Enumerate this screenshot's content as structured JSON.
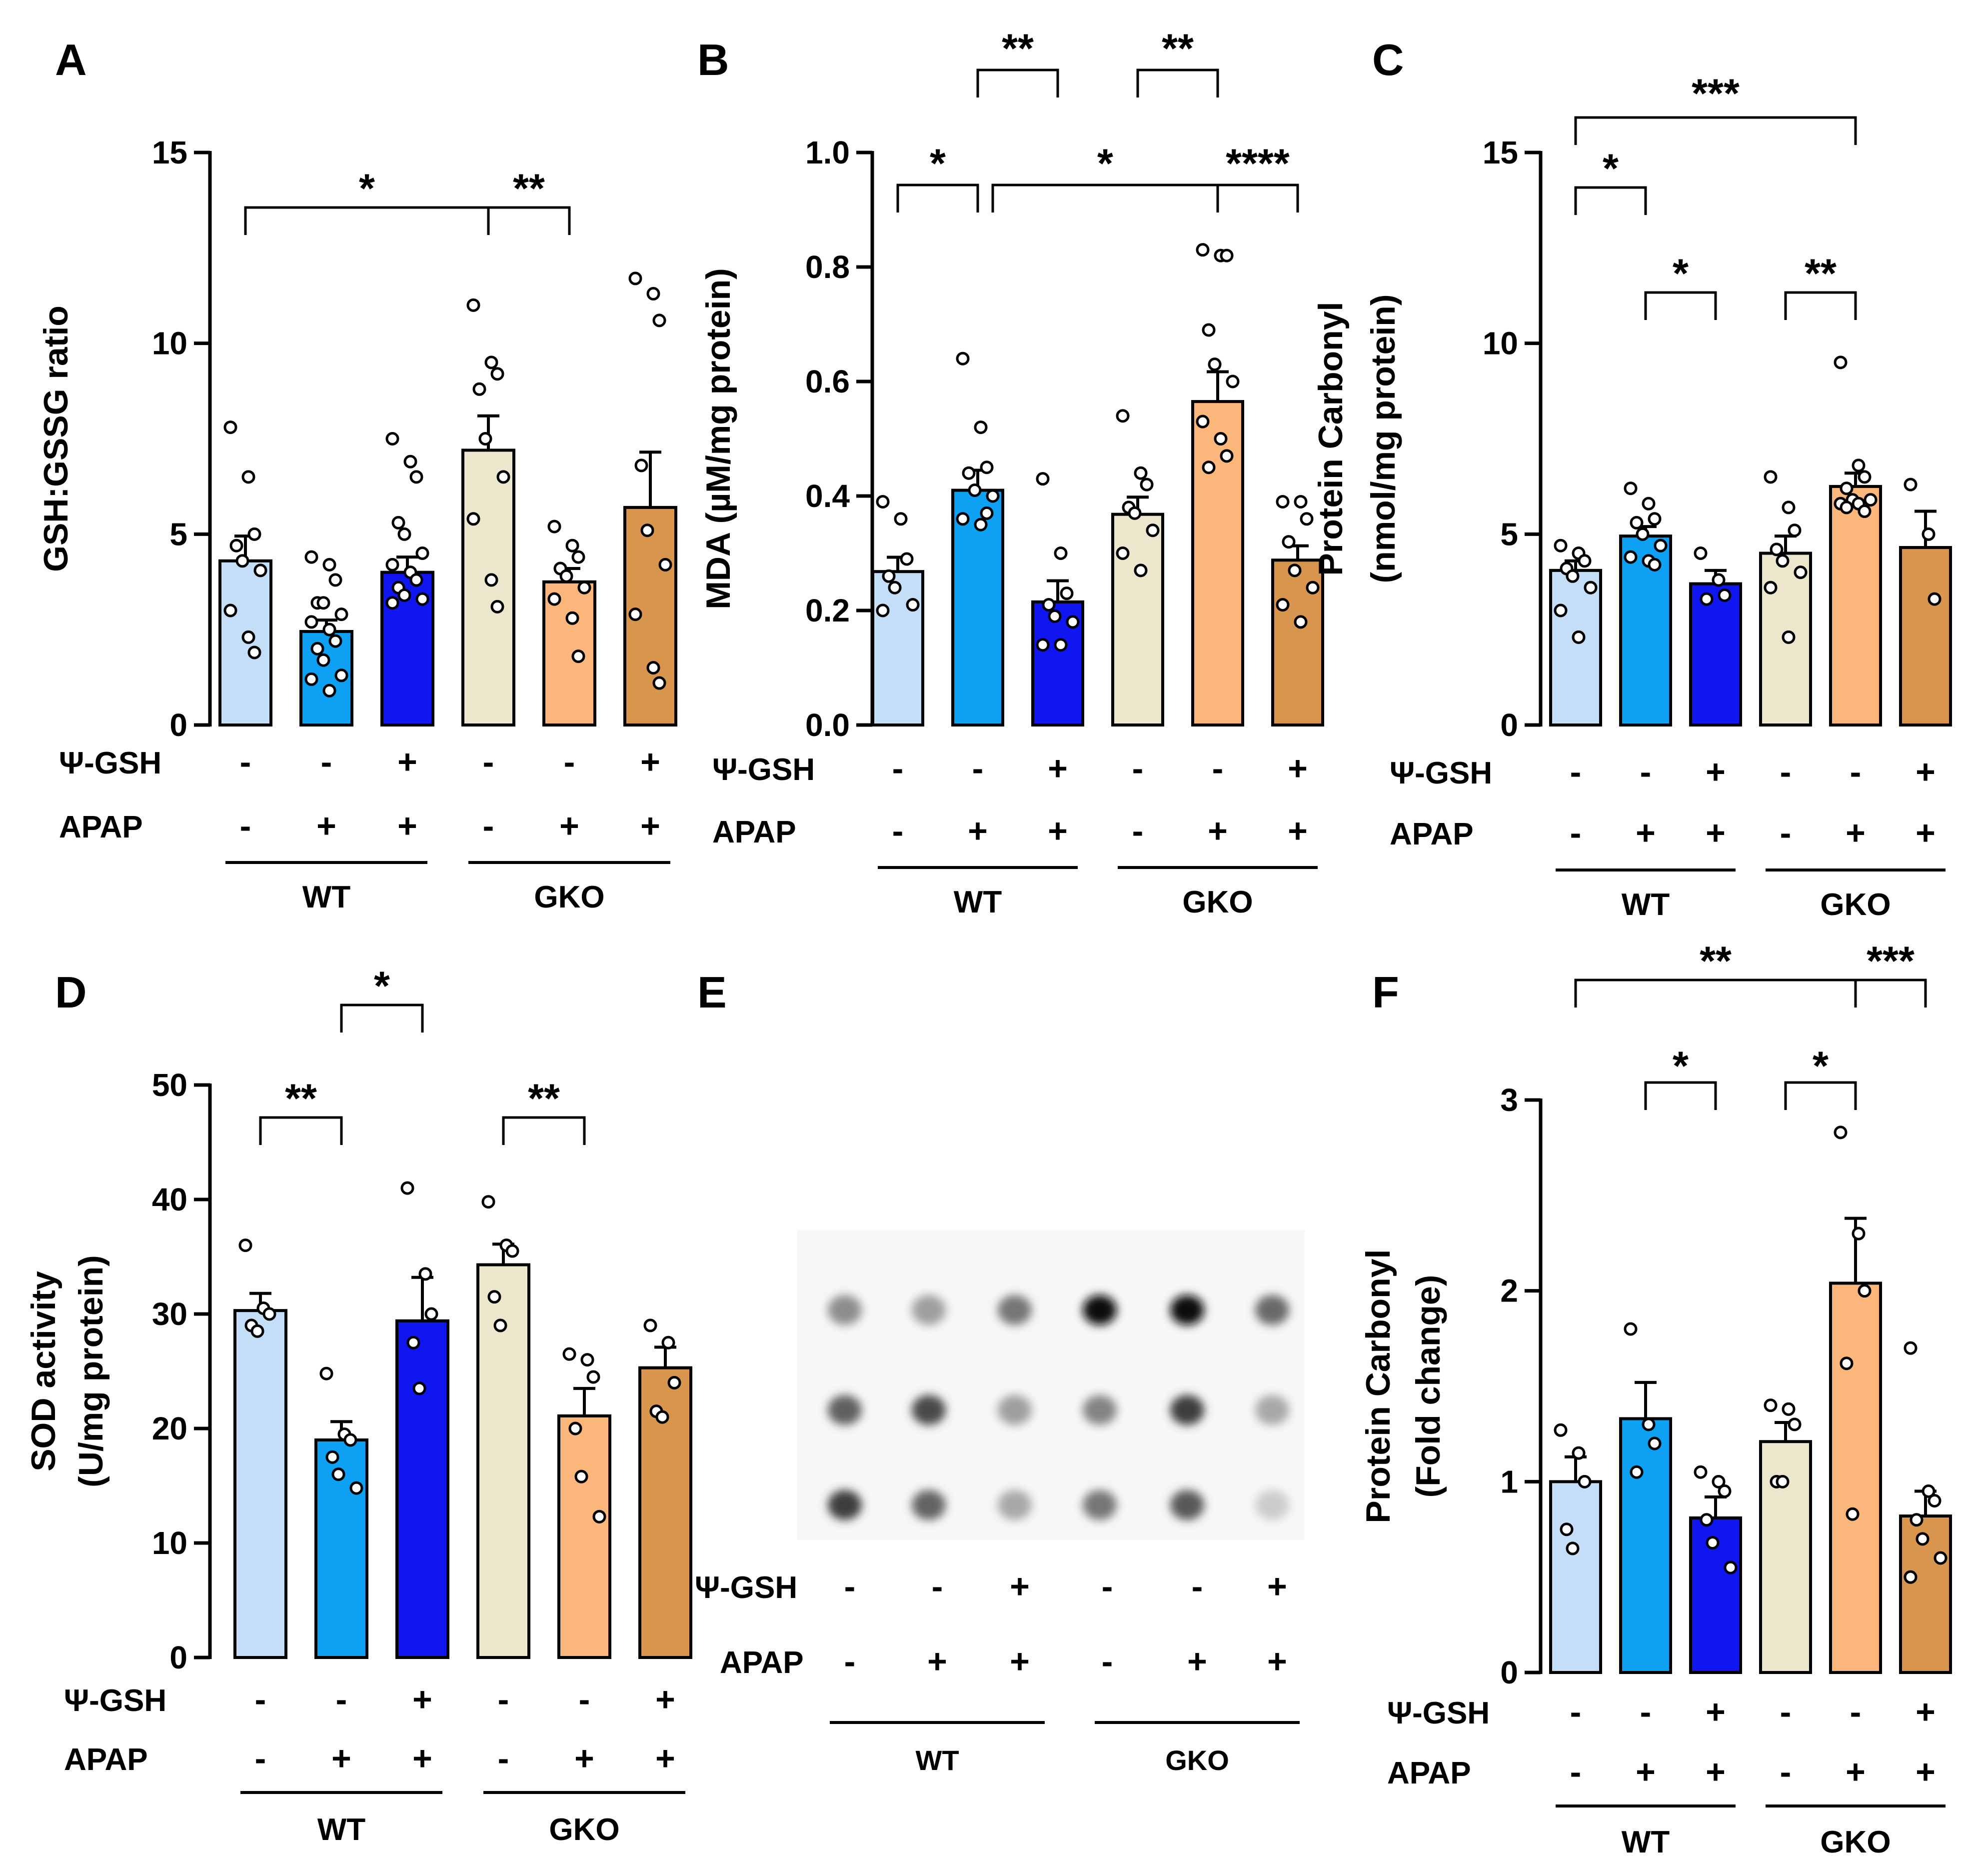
{
  "colors": {
    "wt_ctrl": "#c3def6",
    "wt_apap": "#0ea0f2",
    "wt_gsh": "#0f16f0",
    "gko_ctrl": "#ece7cc",
    "gko_apap": "#fbb67c",
    "gko_gsh": "#d7954d",
    "stroke": "#000000"
  },
  "treatment_labels": {
    "gsh": "Ψ-GSH",
    "apap": "APAP"
  },
  "group_labels": {
    "wt": "WT",
    "gko": "GKO"
  },
  "gsh_signs": [
    "-",
    "-",
    "+",
    "-",
    "-",
    "+"
  ],
  "apap_signs": [
    "-",
    "+",
    "+",
    "-",
    "+",
    "+"
  ],
  "chart_data": [
    {
      "panel": "A",
      "type": "bar",
      "title": "",
      "ylabel": "GSH:GSSG ratio",
      "ylim": [
        0,
        15
      ],
      "yticks": [
        0,
        5,
        10,
        15
      ],
      "tick_labels": [
        "0",
        "5",
        "10",
        "15"
      ],
      "categories": [
        "WT -/-",
        "WT APAP",
        "WT Ψ-GSH+APAP",
        "GKO -/-",
        "GKO APAP",
        "GKO Ψ-GSH+APAP"
      ],
      "values": [
        4.3,
        2.45,
        4.0,
        7.2,
        3.75,
        5.7
      ],
      "errors": [
        0.65,
        0.3,
        0.4,
        0.9,
        0.35,
        1.45
      ],
      "points": [
        [
          7.8,
          6.5,
          5.0,
          4.7,
          4.3,
          4.05,
          3.0,
          2.3,
          1.9
        ],
        [
          4.4,
          4.2,
          3.8,
          3.2,
          3.2,
          2.9,
          2.7,
          2.5,
          2.2,
          2.0,
          1.7,
          1.3,
          1.2,
          0.9
        ],
        [
          7.5,
          6.9,
          6.5,
          5.3,
          5.0,
          4.5,
          4.2,
          4.0,
          3.8,
          3.6,
          3.4,
          3.3,
          3.2
        ],
        [
          11.0,
          9.5,
          9.2,
          8.8,
          7.5,
          6.5,
          5.4,
          3.8,
          3.1
        ],
        [
          5.2,
          4.7,
          4.4,
          4.1,
          3.9,
          3.6,
          3.3,
          2.8,
          1.8
        ],
        [
          11.7,
          11.3,
          10.6,
          6.8,
          5.1,
          4.2,
          2.9,
          1.5,
          1.1
        ]
      ],
      "significance": [
        {
          "from": 0,
          "to": 3,
          "label": "*"
        },
        {
          "from": 3,
          "to": 4,
          "label": "**"
        }
      ]
    },
    {
      "panel": "B",
      "type": "bar",
      "title": "",
      "ylabel": "MDA (µM/mg protein)",
      "ylim": [
        0,
        1.0
      ],
      "yticks": [
        0,
        0.2,
        0.4,
        0.6,
        0.8,
        1.0
      ],
      "tick_labels": [
        "0.0",
        "0.2",
        "0.4",
        "0.6",
        "0.8",
        "1.0"
      ],
      "categories": [
        "WT -/-",
        "WT APAP",
        "WT Ψ-GSH+APAP",
        "GKO -/-",
        "GKO APAP",
        "GKO Ψ-GSH+APAP"
      ],
      "values": [
        0.268,
        0.41,
        0.215,
        0.368,
        0.565,
        0.288
      ],
      "errors": [
        0.025,
        0.035,
        0.037,
        0.03,
        0.052,
        0.025
      ],
      "points": [
        [
          0.39,
          0.36,
          0.29,
          0.26,
          0.24,
          0.21,
          0.2
        ],
        [
          0.64,
          0.52,
          0.45,
          0.44,
          0.41,
          0.4,
          0.36,
          0.35,
          0.37
        ],
        [
          0.43,
          0.3,
          0.23,
          0.21,
          0.19,
          0.18,
          0.14,
          0.14
        ],
        [
          0.54,
          0.44,
          0.42,
          0.38,
          0.37,
          0.34,
          0.3,
          0.27
        ],
        [
          0.83,
          0.82,
          0.82,
          0.69,
          0.63,
          0.6,
          0.53,
          0.5,
          0.47,
          0.45
        ],
        [
          0.39,
          0.39,
          0.36,
          0.32,
          0.27,
          0.24,
          0.21,
          0.18
        ]
      ],
      "significance": [
        {
          "from": 0,
          "to": 1,
          "label": "*"
        },
        {
          "from": 1,
          "to": 2,
          "label": "**"
        },
        {
          "from": 1,
          "to": 4,
          "label": "*"
        },
        {
          "from": 3,
          "to": 4,
          "label": "**"
        },
        {
          "from": 4,
          "to": 5,
          "label": "****"
        }
      ]
    },
    {
      "panel": "C",
      "type": "bar",
      "title": "",
      "ylabel": "Protein Carbonyl",
      "ylabel2": "(nmol/mg protein)",
      "ylim": [
        0,
        15
      ],
      "yticks": [
        0,
        5,
        10,
        15
      ],
      "tick_labels": [
        "0",
        "5",
        "10",
        "15"
      ],
      "categories": [
        "WT -/-",
        "WT APAP",
        "WT Ψ-GSH+APAP",
        "GKO -/-",
        "GKO APAP",
        "GKO Ψ-GSH+APAP"
      ],
      "values": [
        4.05,
        4.95,
        3.7,
        4.5,
        6.25,
        4.65
      ],
      "errors": [
        0.25,
        0.25,
        0.35,
        0.45,
        0.35,
        0.95
      ],
      "points": [
        [
          4.7,
          4.5,
          4.3,
          4.1,
          3.9,
          3.6,
          3.0,
          2.3
        ],
        [
          6.2,
          5.8,
          5.4,
          5.3,
          5.0,
          4.7,
          4.4,
          4.3,
          4.2
        ],
        [
          4.5,
          3.8,
          3.4,
          3.3
        ],
        [
          6.5,
          5.7,
          5.1,
          4.6,
          4.3,
          4.0,
          3.6,
          2.3
        ],
        [
          9.5,
          6.8,
          6.5,
          6.2,
          5.9,
          5.9,
          5.8,
          5.8,
          5.6,
          5.7
        ],
        [
          6.3,
          5.0,
          3.3
        ]
      ],
      "significance": [
        {
          "from": 0,
          "to": 1,
          "label": "*"
        },
        {
          "from": 1,
          "to": 2,
          "label": "*"
        },
        {
          "from": 0,
          "to": 4,
          "label": "***"
        },
        {
          "from": 3,
          "to": 4,
          "label": "**"
        }
      ]
    },
    {
      "panel": "D",
      "type": "bar",
      "title": "",
      "ylabel": "SOD activity",
      "ylabel2": "(U/mg protein)",
      "ylim": [
        0,
        50
      ],
      "yticks": [
        0,
        10,
        20,
        30,
        40,
        50
      ],
      "tick_labels": [
        "0",
        "10",
        "20",
        "30",
        "40",
        "50"
      ],
      "categories": [
        "WT -/-",
        "WT APAP",
        "WT Ψ-GSH+APAP",
        "GKO -/-",
        "GKO APAP",
        "GKO Ψ-GSH+APAP"
      ],
      "values": [
        30.3,
        19.0,
        29.4,
        34.3,
        21.1,
        25.3
      ],
      "errors": [
        1.5,
        1.6,
        3.8,
        1.8,
        2.4,
        1.8
      ],
      "points": [
        [
          36.0,
          30.5,
          30.0,
          29.0,
          28.5
        ],
        [
          24.8,
          19.5,
          19.0,
          17.5,
          16.0,
          14.8
        ],
        [
          41.0,
          33.5,
          30.0,
          27.5,
          23.5
        ],
        [
          39.8,
          36.0,
          35.5,
          31.5,
          29.0
        ],
        [
          26.5,
          26.0,
          24.5,
          20.0,
          15.8,
          12.3
        ],
        [
          29.0,
          27.5,
          24.0,
          21.5,
          21.0
        ]
      ],
      "significance": [
        {
          "from": 0,
          "to": 1,
          "label": "**"
        },
        {
          "from": 1,
          "to": 2,
          "label": "*"
        },
        {
          "from": 3,
          "to": 4,
          "label": "**"
        }
      ]
    },
    {
      "panel": "F",
      "type": "bar",
      "title": "",
      "ylabel": "Protein Carbonyl",
      "ylabel2": "(Fold change)",
      "ylim": [
        0,
        3
      ],
      "yticks": [
        0,
        1,
        2,
        3
      ],
      "tick_labels": [
        "0",
        "1",
        "2",
        "3"
      ],
      "categories": [
        "WT -/-",
        "WT APAP",
        "WT Ψ-GSH+APAP",
        "GKO -/-",
        "GKO APAP",
        "GKO Ψ-GSH+APAP"
      ],
      "values": [
        1.0,
        1.33,
        0.81,
        1.21,
        2.04,
        0.82
      ],
      "errors": [
        0.13,
        0.19,
        0.11,
        0.1,
        0.34,
        0.13
      ],
      "points": [
        [
          1.27,
          1.15,
          1.0,
          0.75,
          0.65
        ],
        [
          1.8,
          1.3,
          1.2,
          1.05
        ],
        [
          1.05,
          1.0,
          0.95,
          0.8,
          0.68,
          0.55
        ],
        [
          1.4,
          1.38,
          1.3,
          1.0,
          1.0
        ],
        [
          2.83,
          2.3,
          2.0,
          1.62,
          0.83
        ],
        [
          1.7,
          0.95,
          0.9,
          0.8,
          0.7,
          0.6,
          0.5
        ]
      ],
      "significance": [
        {
          "from": 0,
          "to": 4,
          "label": "**"
        },
        {
          "from": 4,
          "to": 5,
          "label": "***"
        },
        {
          "from": 1,
          "to": 2,
          "label": "*"
        },
        {
          "from": 3,
          "to": 4,
          "label": "*"
        }
      ]
    }
  ],
  "panel_E": {
    "letter": "E",
    "dot_intensity": [
      [
        0.42,
        0.34,
        0.52,
        1.0,
        0.98,
        0.58
      ],
      [
        0.62,
        0.72,
        0.34,
        0.46,
        0.78,
        0.3
      ],
      [
        0.78,
        0.6,
        0.3,
        0.52,
        0.65,
        0.14
      ]
    ]
  }
}
